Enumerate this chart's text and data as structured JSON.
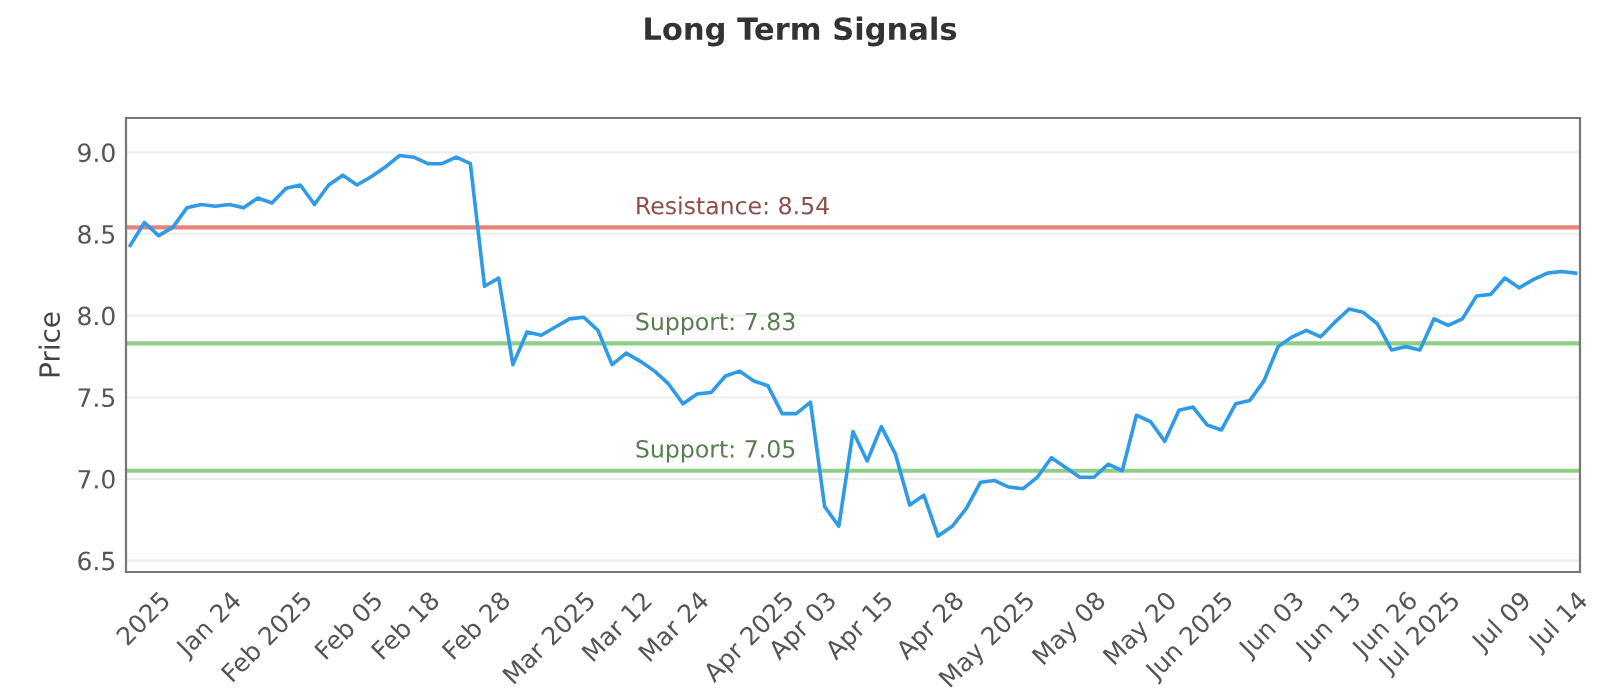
{
  "chart_data": {
    "type": "line",
    "title": "Long Term Signals",
    "ylabel": "Price",
    "categories": [
      null,
      null,
      "2025",
      null,
      null,
      null,
      null,
      "Jan 24",
      null,
      null,
      null,
      null,
      "Feb 2025",
      null,
      null,
      null,
      null,
      "Feb 05",
      null,
      null,
      null,
      "Feb 18",
      null,
      null,
      null,
      null,
      "Feb 28",
      null,
      null,
      null,
      null,
      null,
      "Mar 2025",
      null,
      null,
      null,
      "Mar 12",
      null,
      null,
      null,
      "Mar 24",
      null,
      null,
      null,
      null,
      null,
      "Apr 2025",
      null,
      null,
      "Apr 03",
      null,
      null,
      null,
      "Apr 15",
      null,
      null,
      null,
      null,
      "Apr 28",
      null,
      null,
      null,
      null,
      "May 2025",
      null,
      null,
      null,
      null,
      "May 08",
      null,
      null,
      null,
      null,
      "May 20",
      null,
      null,
      null,
      "Jun 2025",
      null,
      null,
      null,
      null,
      "Jun 03",
      null,
      null,
      null,
      "Jun 13",
      null,
      null,
      null,
      "Jun 26",
      null,
      null,
      "Jul 2025",
      null,
      null,
      null,
      null,
      "Jul 09",
      null,
      null,
      null,
      "Jul 14"
    ],
    "series": [
      {
        "color": "#2f9be6",
        "values": [
          8.43,
          8.57,
          8.49,
          8.54,
          8.66,
          8.68,
          8.67,
          8.68,
          8.66,
          8.72,
          8.69,
          8.78,
          8.8,
          8.68,
          8.8,
          8.86,
          8.8,
          8.85,
          8.91,
          8.98,
          8.97,
          8.93,
          8.93,
          8.97,
          8.93,
          8.18,
          8.23,
          7.7,
          7.9,
          7.88,
          7.93,
          7.98,
          7.99,
          7.91,
          7.7,
          7.77,
          7.72,
          7.66,
          7.58,
          7.46,
          7.52,
          7.53,
          7.63,
          7.66,
          7.6,
          7.57,
          7.4,
          7.4,
          7.47,
          6.83,
          6.71,
          7.29,
          7.11,
          7.32,
          7.15,
          6.84,
          6.9,
          6.65,
          6.71,
          6.82,
          6.98,
          6.99,
          6.95,
          6.94,
          7.01,
          7.13,
          7.07,
          7.01,
          7.01,
          7.09,
          7.05,
          7.39,
          7.35,
          7.23,
          7.42,
          7.44,
          7.33,
          7.3,
          7.46,
          7.48,
          7.6,
          7.81,
          7.87,
          7.91,
          7.87,
          7.96,
          8.04,
          8.02,
          7.95,
          7.79,
          7.81,
          7.79,
          7.98,
          7.94,
          7.98,
          8.12,
          8.13,
          8.23,
          8.17,
          8.22,
          8.26,
          8.27,
          8.26
        ]
      }
    ],
    "ylim": [
      6.43,
      9.21
    ],
    "yticks": [
      {
        "value": 6.5,
        "label": "6.5"
      },
      {
        "value": 7.0,
        "label": "7.0"
      },
      {
        "value": 7.5,
        "label": "7.5"
      },
      {
        "value": 8.0,
        "label": "8.0"
      },
      {
        "value": 8.5,
        "label": "8.5"
      },
      {
        "value": 9.0,
        "label": "9.0"
      }
    ],
    "ref_lines": [
      {
        "axis": "y",
        "value": 8.54,
        "label": "Resistance: 8.54",
        "color": "#e8837a"
      },
      {
        "axis": "y",
        "value": 7.83,
        "label": "Support: 7.83",
        "color": "#8fcf85"
      },
      {
        "axis": "y",
        "value": 7.05,
        "label": "Support: 7.05",
        "color": "#8fcf85"
      }
    ],
    "grid": "y",
    "marker": "none",
    "line_style": "solid",
    "legend": false
  }
}
